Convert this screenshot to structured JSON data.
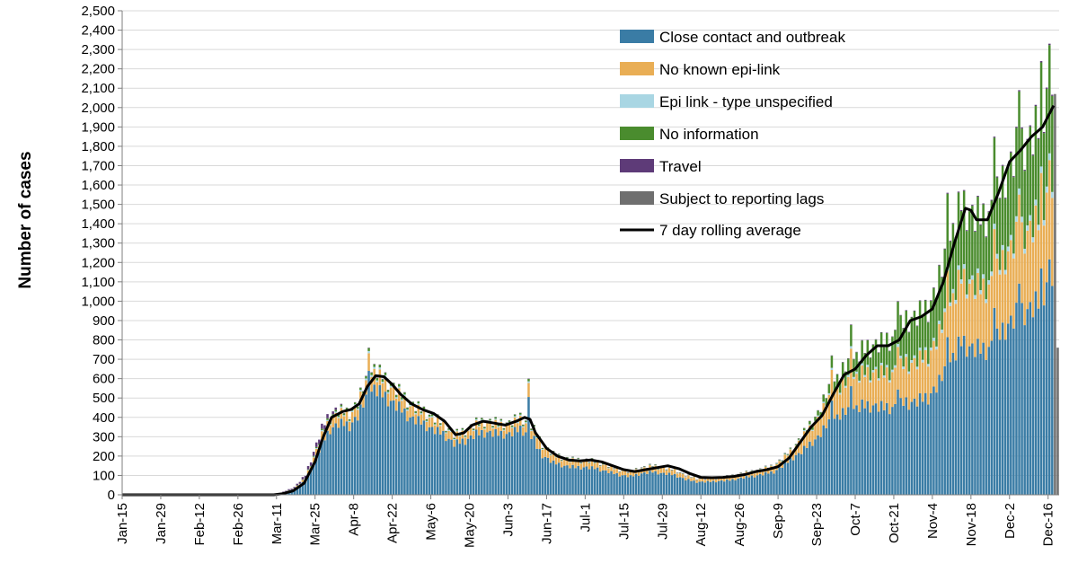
{
  "chart_data": {
    "type": "bar",
    "stacked": true,
    "title": "",
    "xlabel": "",
    "ylabel": "Number of cases",
    "ylim": [
      0,
      2500
    ],
    "ytick_step": 100,
    "x_start": "Jan-15",
    "x_end": "Dec-20",
    "x_tick_labels": [
      "Jan-15",
      "Jan-29",
      "Feb-12",
      "Feb-26",
      "Mar-11",
      "Mar-25",
      "Apr-8",
      "Apr-22",
      "May-6",
      "May-20",
      "Jun-3",
      "Jun-17",
      "Jul-1",
      "Jul-15",
      "Jul-29",
      "Aug-12",
      "Aug-26",
      "Sep-9",
      "Sep-23",
      "Oct-7",
      "Oct-21",
      "Nov-4",
      "Nov-18",
      "Dec-2",
      "Dec-16"
    ],
    "x_tick_day_index": [
      0,
      14,
      28,
      42,
      56,
      70,
      84,
      98,
      112,
      126,
      140,
      154,
      168,
      182,
      196,
      210,
      224,
      238,
      252,
      266,
      280,
      294,
      308,
      322,
      336
    ],
    "legend_position": "top-right",
    "series": [
      {
        "name": "Close contact and outbreak",
        "color": "#3a7ca5"
      },
      {
        "name": "No known epi-link",
        "color": "#e9ae55"
      },
      {
        "name": "Epi link - type unspecified",
        "color": "#a9d6e3"
      },
      {
        "name": "No information",
        "color": "#4a8c2e"
      },
      {
        "name": "Travel",
        "color": "#5e3b78"
      },
      {
        "name": "Subject to reporting lags",
        "color": "#6f6f6f"
      }
    ],
    "rolling_average": {
      "name": "7 day rolling average",
      "color": "#000000",
      "points": [
        [
          0,
          0
        ],
        [
          55,
          0
        ],
        [
          58,
          5
        ],
        [
          62,
          20
        ],
        [
          66,
          60
        ],
        [
          70,
          170
        ],
        [
          73,
          300
        ],
        [
          76,
          400
        ],
        [
          80,
          430
        ],
        [
          83,
          440
        ],
        [
          86,
          470
        ],
        [
          89,
          560
        ],
        [
          92,
          615
        ],
        [
          95,
          610
        ],
        [
          98,
          570
        ],
        [
          101,
          520
        ],
        [
          105,
          470
        ],
        [
          109,
          440
        ],
        [
          113,
          420
        ],
        [
          117,
          380
        ],
        [
          121,
          310
        ],
        [
          124,
          320
        ],
        [
          127,
          360
        ],
        [
          131,
          380
        ],
        [
          135,
          370
        ],
        [
          139,
          360
        ],
        [
          143,
          380
        ],
        [
          146,
          400
        ],
        [
          148,
          390
        ],
        [
          150,
          320
        ],
        [
          154,
          240
        ],
        [
          158,
          200
        ],
        [
          162,
          180
        ],
        [
          166,
          175
        ],
        [
          170,
          180
        ],
        [
          174,
          170
        ],
        [
          178,
          150
        ],
        [
          182,
          130
        ],
        [
          186,
          120
        ],
        [
          190,
          130
        ],
        [
          194,
          140
        ],
        [
          198,
          150
        ],
        [
          202,
          135
        ],
        [
          206,
          110
        ],
        [
          210,
          90
        ],
        [
          214,
          88
        ],
        [
          218,
          90
        ],
        [
          222,
          95
        ],
        [
          226,
          105
        ],
        [
          230,
          120
        ],
        [
          234,
          130
        ],
        [
          238,
          145
        ],
        [
          242,
          190
        ],
        [
          246,
          270
        ],
        [
          250,
          350
        ],
        [
          254,
          410
        ],
        [
          258,
          520
        ],
        [
          262,
          620
        ],
        [
          266,
          650
        ],
        [
          270,
          720
        ],
        [
          274,
          770
        ],
        [
          278,
          770
        ],
        [
          282,
          800
        ],
        [
          286,
          900
        ],
        [
          290,
          920
        ],
        [
          294,
          960
        ],
        [
          298,
          1100
        ],
        [
          302,
          1300
        ],
        [
          306,
          1480
        ],
        [
          308,
          1470
        ],
        [
          310,
          1420
        ],
        [
          314,
          1420
        ],
        [
          318,
          1560
        ],
        [
          322,
          1720
        ],
        [
          326,
          1780
        ],
        [
          330,
          1850
        ],
        [
          334,
          1900
        ],
        [
          338,
          2010
        ]
      ]
    },
    "profile": [
      [
        0,
        0
      ],
      [
        55,
        0
      ],
      [
        58,
        15
      ],
      [
        62,
        40
      ],
      [
        66,
        100
      ],
      [
        69,
        220
      ],
      [
        72,
        340
      ],
      [
        75,
        420
      ],
      [
        78,
        440
      ],
      [
        82,
        420
      ],
      [
        85,
        480
      ],
      [
        88,
        580
      ],
      [
        91,
        650
      ],
      [
        94,
        610
      ],
      [
        97,
        570
      ],
      [
        100,
        530
      ],
      [
        104,
        470
      ],
      [
        108,
        440
      ],
      [
        112,
        400
      ],
      [
        116,
        370
      ],
      [
        120,
        310
      ],
      [
        124,
        330
      ],
      [
        128,
        370
      ],
      [
        132,
        380
      ],
      [
        136,
        370
      ],
      [
        140,
        370
      ],
      [
        144,
        400
      ],
      [
        148,
        360
      ],
      [
        152,
        260
      ],
      [
        156,
        210
      ],
      [
        160,
        190
      ],
      [
        164,
        180
      ],
      [
        168,
        180
      ],
      [
        172,
        170
      ],
      [
        176,
        150
      ],
      [
        180,
        130
      ],
      [
        184,
        120
      ],
      [
        188,
        140
      ],
      [
        192,
        150
      ],
      [
        196,
        140
      ],
      [
        200,
        130
      ],
      [
        204,
        100
      ],
      [
        208,
        85
      ],
      [
        212,
        85
      ],
      [
        216,
        90
      ],
      [
        220,
        95
      ],
      [
        224,
        110
      ],
      [
        228,
        120
      ],
      [
        232,
        135
      ],
      [
        236,
        150
      ],
      [
        240,
        200
      ],
      [
        244,
        260
      ],
      [
        248,
        340
      ],
      [
        252,
        420
      ],
      [
        256,
        540
      ],
      [
        260,
        620
      ],
      [
        264,
        680
      ],
      [
        268,
        740
      ],
      [
        272,
        770
      ],
      [
        276,
        780
      ],
      [
        280,
        820
      ],
      [
        284,
        900
      ],
      [
        288,
        920
      ],
      [
        292,
        960
      ],
      [
        296,
        1100
      ],
      [
        300,
        1300
      ],
      [
        304,
        1500
      ],
      [
        308,
        1440
      ],
      [
        312,
        1420
      ],
      [
        316,
        1480
      ],
      [
        320,
        1650
      ],
      [
        324,
        1760
      ],
      [
        328,
        1820
      ],
      [
        332,
        1880
      ],
      [
        336,
        2150
      ],
      [
        338,
        2200
      ]
    ],
    "noise": [
      0.04,
      -0.05,
      0.08,
      -0.02,
      0.06,
      -0.07,
      0.01
    ],
    "spikes": [
      [
        89,
        760
      ],
      [
        147,
        600
      ],
      [
        257,
        720
      ],
      [
        264,
        880
      ],
      [
        281,
        1000
      ],
      [
        299,
        1560
      ],
      [
        316,
        1850
      ],
      [
        325,
        2090
      ],
      [
        333,
        2240
      ],
      [
        336,
        2330
      ]
    ],
    "lag_bars": [
      [
        338,
        2070
      ],
      [
        339,
        760
      ]
    ]
  }
}
